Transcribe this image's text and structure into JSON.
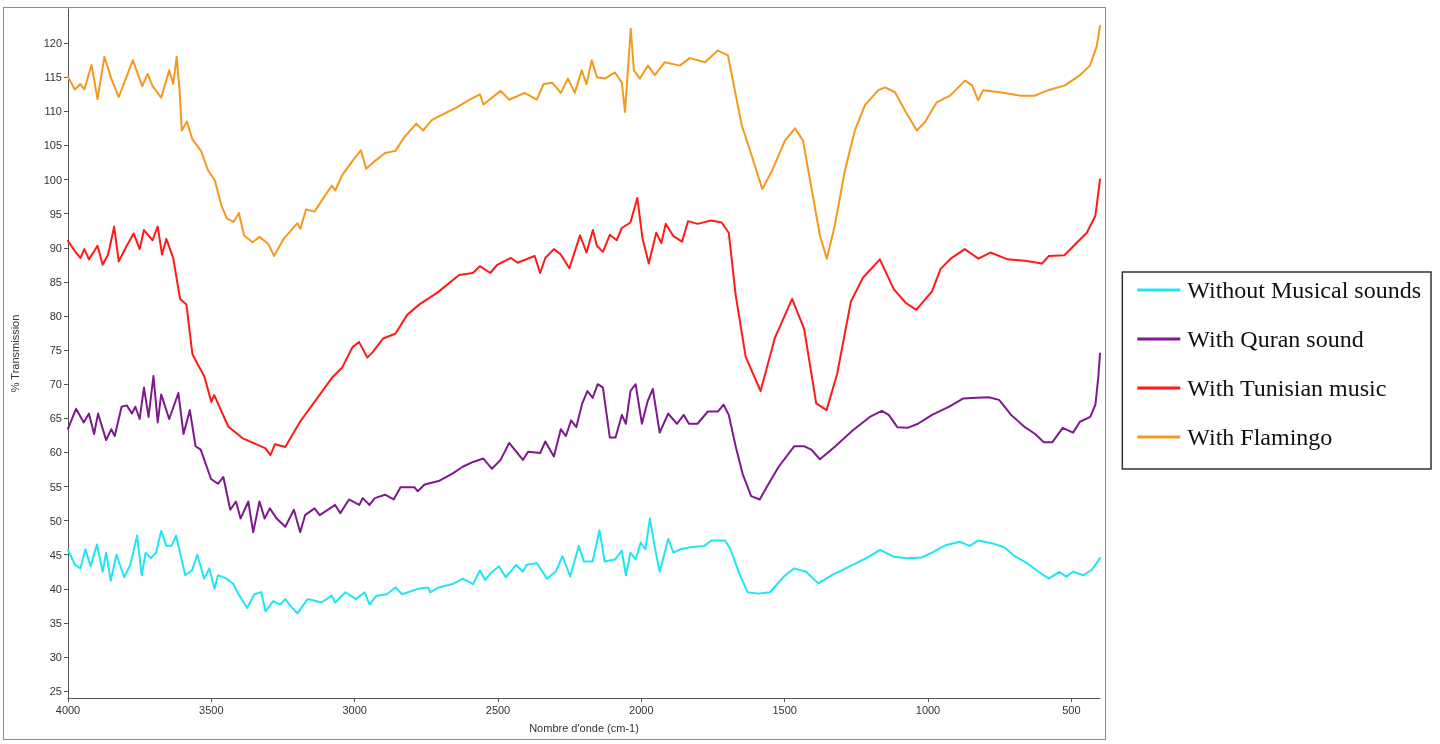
{
  "chart_data": {
    "type": "line",
    "xlabel": "Nombre d'onde (cm-1)",
    "ylabel": "% Transmission",
    "xlim": [
      4000,
      400
    ],
    "xticks": [
      4000,
      3500,
      3000,
      2500,
      2000,
      1500,
      1000,
      500
    ],
    "ylim": [
      24,
      125
    ],
    "yticks": [
      25,
      30,
      35,
      40,
      45,
      50,
      55,
      60,
      65,
      70,
      75,
      80,
      85,
      90,
      95,
      100,
      105,
      110,
      115,
      120
    ],
    "legend": "right",
    "marker": "none",
    "line_style": "solid",
    "series": [
      {
        "name": "Without Musical sounds",
        "color": "#1fe6f2",
        "x": [
          4000,
          3975,
          3957,
          3939,
          3921,
          3899,
          3879,
          3867,
          3851,
          3831,
          3804,
          3783,
          3759,
          3743,
          3729,
          3711,
          3693,
          3675,
          3657,
          3639,
          3623,
          3591,
          3567,
          3549,
          3525,
          3507,
          3489,
          3477,
          3447,
          3423,
          3405,
          3375,
          3350,
          3326,
          3311,
          3284,
          3260,
          3242,
          3224,
          3200,
          3164,
          3116,
          3080,
          3068,
          3032,
          2996,
          2965,
          2948,
          2924,
          2888,
          2858,
          2834,
          2780,
          2743,
          2737,
          2707,
          2659,
          2623,
          2587,
          2563,
          2545,
          2527,
          2497,
          2473,
          2437,
          2413,
          2401,
          2365,
          2329,
          2299,
          2275,
          2248,
          2218,
          2200,
          2170,
          2146,
          2128,
          2092,
          2068,
          2054,
          2038,
          2020,
          2002,
          1986,
          1970,
          1954,
          1936,
          1906,
          1888,
          1864,
          1828,
          1780,
          1756,
          1708,
          1689,
          1659,
          1629,
          1593,
          1551,
          1503,
          1467,
          1425,
          1383,
          1335,
          1263,
          1215,
          1167,
          1119,
          1071,
          1022,
          986,
          938,
          890,
          854,
          824,
          770,
          734,
          698,
          656,
          614,
          578,
          542,
          518,
          494,
          458,
          428,
          400
        ],
        "values": [
          45.7,
          43.5,
          43.0,
          45.8,
          43.3,
          46.5,
          42.5,
          45.3,
          41.2,
          45.0,
          41.7,
          43.5,
          47.8,
          42.0,
          45.3,
          44.5,
          45.3,
          48.5,
          46.3,
          46.3,
          47.8,
          42.0,
          42.7,
          45.0,
          41.5,
          43.0,
          40.0,
          42.0,
          41.5,
          40.7,
          39.2,
          37.2,
          39.2,
          39.5,
          36.7,
          38.2,
          37.7,
          38.5,
          37.5,
          36.4,
          38.5,
          38.0,
          39.0,
          38.0,
          39.5,
          38.5,
          39.5,
          37.7,
          39.0,
          39.2,
          40.2,
          39.2,
          40.0,
          40.2,
          39.5,
          40.2,
          40.7,
          41.5,
          40.7,
          42.7,
          41.3,
          42.2,
          43.3,
          41.7,
          43.5,
          42.5,
          43.5,
          43.8,
          41.5,
          42.5,
          44.8,
          41.8,
          46.3,
          44.0,
          44.0,
          48.6,
          44.0,
          44.3,
          45.6,
          42.0,
          45.3,
          44.3,
          46.8,
          45.8,
          50.3,
          46.3,
          42.5,
          47.3,
          45.3,
          45.8,
          46.1,
          46.3,
          47.1,
          47.1,
          45.8,
          42.3,
          39.5,
          39.3,
          39.5,
          41.8,
          43.0,
          42.5,
          40.8,
          42.0,
          43.5,
          44.5,
          45.7,
          44.7,
          44.5,
          44.6,
          45.3,
          46.4,
          46.9,
          46.3,
          47.1,
          46.6,
          46.1,
          44.8,
          43.8,
          42.5,
          41.5,
          42.5,
          41.8,
          42.5,
          42.0,
          42.8,
          44.5
        ]
      },
      {
        "name": "With Quran sound",
        "color": "#7d1a8c",
        "x": [
          4000,
          3972,
          3945,
          3927,
          3909,
          3895,
          3867,
          3849,
          3837,
          3813,
          3795,
          3777,
          3765,
          3750,
          3735,
          3719,
          3702,
          3687,
          3675,
          3647,
          3615,
          3597,
          3575,
          3555,
          3537,
          3501,
          3477,
          3458,
          3434,
          3414,
          3398,
          3371,
          3354,
          3332,
          3314,
          3296,
          3272,
          3242,
          3212,
          3190,
          3173,
          3140,
          3122,
          3068,
          3050,
          3020,
          2984,
          2972,
          2948,
          2930,
          2894,
          2864,
          2840,
          2792,
          2780,
          2756,
          2707,
          2659,
          2623,
          2587,
          2551,
          2521,
          2491,
          2461,
          2413,
          2395,
          2353,
          2335,
          2305,
          2281,
          2263,
          2245,
          2227,
          2206,
          2188,
          2170,
          2152,
          2134,
          2110,
          2090,
          2068,
          2054,
          2038,
          2020,
          1998,
          1978,
          1960,
          1936,
          1906,
          1876,
          1852,
          1834,
          1804,
          1768,
          1732,
          1713,
          1695,
          1671,
          1647,
          1617,
          1587,
          1563,
          1521,
          1467,
          1431,
          1407,
          1377,
          1323,
          1263,
          1203,
          1161,
          1137,
          1107,
          1071,
          1035,
          986,
          926,
          878,
          830,
          788,
          752,
          710,
          662,
          626,
          596,
          566,
          530,
          494,
          470,
          434,
          416,
          406,
          400
        ],
        "values": [
          63.5,
          66.4,
          64.4,
          65.7,
          62.7,
          65.7,
          61.8,
          63.4,
          62.4,
          66.7,
          66.9,
          65.7,
          66.7,
          64.9,
          69.5,
          65.2,
          71.2,
          64.4,
          68.5,
          64.9,
          68.7,
          62.7,
          66.2,
          60.9,
          60.4,
          56.1,
          55.4,
          56.4,
          51.6,
          52.8,
          50.3,
          52.8,
          48.3,
          52.8,
          50.3,
          51.8,
          50.3,
          49.1,
          51.6,
          48.3,
          50.8,
          51.8,
          50.8,
          52.3,
          51.1,
          53.1,
          52.3,
          53.3,
          52.3,
          53.3,
          53.8,
          53.1,
          54.9,
          54.9,
          54.3,
          55.3,
          55.8,
          56.9,
          57.9,
          58.6,
          59.1,
          57.6,
          58.9,
          61.4,
          58.9,
          60.1,
          59.9,
          61.6,
          59.4,
          63.4,
          62.4,
          64.7,
          63.7,
          67.2,
          69.0,
          68.0,
          70.0,
          69.5,
          62.2,
          62.2,
          65.5,
          64.2,
          69.0,
          70.0,
          64.2,
          67.5,
          69.3,
          62.9,
          65.7,
          64.2,
          65.5,
          64.2,
          64.2,
          66.0,
          66.0,
          67.0,
          65.5,
          60.9,
          56.9,
          53.6,
          53.1,
          54.9,
          57.9,
          60.9,
          60.9,
          60.4,
          59.0,
          60.9,
          63.2,
          65.2,
          66.1,
          65.5,
          63.7,
          63.6,
          64.2,
          65.5,
          66.7,
          67.9,
          68.0,
          68.1,
          67.7,
          65.5,
          63.7,
          62.7,
          61.5,
          61.5,
          63.6,
          62.9,
          64.5,
          65.2,
          67.0,
          71.0,
          74.5
        ]
      },
      {
        "name": "With Tunisian music",
        "color": "#ff1a1a",
        "x": [
          4000,
          3976,
          3957,
          3943,
          3927,
          3897,
          3879,
          3860,
          3839,
          3823,
          3795,
          3771,
          3750,
          3735,
          3705,
          3687,
          3672,
          3657,
          3633,
          3609,
          3587,
          3566,
          3524,
          3500,
          3490,
          3441,
          3392,
          3338,
          3311,
          3294,
          3278,
          3242,
          3189,
          3140,
          3080,
          3044,
          3008,
          2985,
          2956,
          2937,
          2901,
          2858,
          2816,
          2774,
          2709,
          2636,
          2588,
          2563,
          2527,
          2503,
          2455,
          2432,
          2372,
          2353,
          2335,
          2305,
          2281,
          2251,
          2214,
          2191,
          2169,
          2155,
          2134,
          2110,
          2086,
          2068,
          2038,
          2014,
          1996,
          1974,
          1948,
          1930,
          1915,
          1888,
          1858,
          1837,
          1804,
          1756,
          1720,
          1695,
          1671,
          1636,
          1584,
          1534,
          1474,
          1432,
          1390,
          1354,
          1317,
          1269,
          1227,
          1168,
          1119,
          1077,
          1041,
          986,
          956,
          921,
          872,
          824,
          782,
          722,
          662,
          602,
          578,
          524,
          482,
          446,
          416,
          400
        ],
        "values": [
          91.0,
          89.5,
          88.5,
          89.8,
          88.3,
          90.3,
          87.5,
          89.0,
          93.1,
          88.0,
          90.3,
          92.1,
          89.8,
          92.6,
          91.1,
          93.1,
          89.0,
          91.3,
          88.5,
          82.5,
          81.7,
          74.4,
          71.1,
          67.4,
          68.4,
          63.8,
          62.1,
          61.1,
          60.6,
          59.6,
          61.2,
          60.8,
          64.6,
          67.4,
          70.9,
          72.4,
          75.4,
          76.2,
          73.9,
          74.7,
          76.7,
          77.4,
          80.2,
          81.7,
          83.5,
          86.0,
          86.3,
          87.3,
          86.3,
          87.5,
          88.5,
          87.8,
          88.8,
          86.3,
          88.5,
          89.8,
          89.0,
          87.0,
          91.8,
          89.3,
          92.6,
          90.3,
          89.4,
          91.9,
          91.1,
          92.9,
          93.7,
          97.3,
          91.4,
          87.7,
          92.2,
          90.7,
          93.5,
          91.7,
          90.9,
          93.9,
          93.5,
          94.0,
          93.7,
          92.2,
          83.1,
          74.0,
          69.0,
          76.8,
          82.5,
          78.1,
          67.2,
          66.2,
          71.5,
          82.1,
          85.6,
          88.3,
          83.9,
          81.9,
          80.9,
          83.6,
          86.9,
          88.4,
          89.8,
          88.4,
          89.3,
          88.3,
          88.1,
          87.7,
          88.8,
          88.9,
          90.7,
          92.2,
          94.7,
          100.0
        ]
      },
      {
        "name": "With Flamingo",
        "color": "#f39a1e",
        "x": [
          4000,
          3993,
          3976,
          3957,
          3943,
          3918,
          3897,
          3873,
          3849,
          3823,
          3801,
          3774,
          3741,
          3722,
          3705,
          3675,
          3647,
          3633,
          3621,
          3611,
          3603,
          3585,
          3566,
          3536,
          3512,
          3488,
          3464,
          3446,
          3422,
          3404,
          3386,
          3356,
          3332,
          3302,
          3281,
          3248,
          3200,
          3189,
          3170,
          3140,
          3104,
          3080,
          3068,
          3044,
          3008,
          2978,
          2960,
          2930,
          2894,
          2858,
          2827,
          2785,
          2761,
          2731,
          2695,
          2647,
          2599,
          2563,
          2551,
          2491,
          2461,
          2407,
          2365,
          2341,
          2311,
          2281,
          2256,
          2232,
          2208,
          2191,
          2173,
          2155,
          2127,
          2092,
          2068,
          2057,
          2037,
          2026,
          2005,
          1977,
          1953,
          1918,
          1866,
          1831,
          1778,
          1733,
          1698,
          1674,
          1650,
          1621,
          1578,
          1544,
          1499,
          1464,
          1436,
          1405,
          1377,
          1353,
          1325,
          1290,
          1255,
          1220,
          1173,
          1150,
          1115,
          1080,
          1039,
          1011,
          970,
          923,
          871,
          846,
          825,
          808,
          749,
          679,
          627,
          581,
          522,
          470,
          435,
          411,
          400
        ],
        "values": [
          115.0,
          114.5,
          113.2,
          114.0,
          113.2,
          116.8,
          111.8,
          118.0,
          114.8,
          112.1,
          114.5,
          117.5,
          113.7,
          115.5,
          113.7,
          112.0,
          116.0,
          114.0,
          118.0,
          113.2,
          107.2,
          108.5,
          105.9,
          104.2,
          101.4,
          99.9,
          96.1,
          94.3,
          93.8,
          95.1,
          91.8,
          90.8,
          91.6,
          90.6,
          88.8,
          91.3,
          93.6,
          92.8,
          95.6,
          95.3,
          97.6,
          99.1,
          98.4,
          100.6,
          102.7,
          104.3,
          101.6,
          102.7,
          103.9,
          104.2,
          106.2,
          108.2,
          107.2,
          108.7,
          109.5,
          110.5,
          111.7,
          112.5,
          111.0,
          113.0,
          111.7,
          112.7,
          111.7,
          114.0,
          114.2,
          112.7,
          114.8,
          112.7,
          116.0,
          114.0,
          117.5,
          115.0,
          114.8,
          115.7,
          114.2,
          109.9,
          122.1,
          116.0,
          114.8,
          116.7,
          115.3,
          117.2,
          116.7,
          117.8,
          117.2,
          118.9,
          118.2,
          113.1,
          108.0,
          104.3,
          98.6,
          101.3,
          105.7,
          107.5,
          105.7,
          98.4,
          91.8,
          88.4,
          93.3,
          101.3,
          107.2,
          110.9,
          113.1,
          113.5,
          112.8,
          110.1,
          107.2,
          108.4,
          111.3,
          112.3,
          114.5,
          113.8,
          111.6,
          113.1,
          112.8,
          112.3,
          112.3,
          113.1,
          113.8,
          115.3,
          116.7,
          119.6,
          122.5
        ]
      }
    ]
  }
}
